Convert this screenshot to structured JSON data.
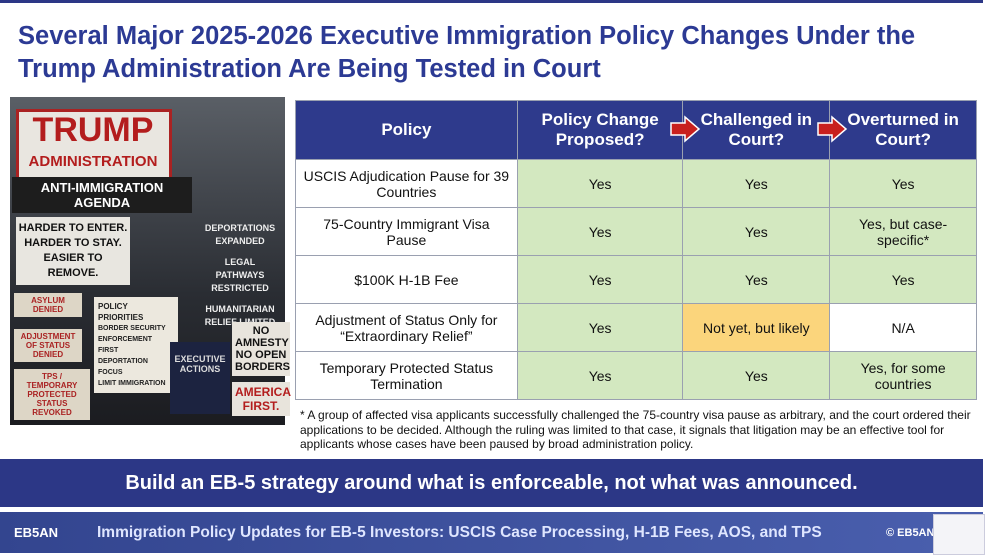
{
  "header": {
    "title": "Several Major 2025-2026 Executive Immigration Policy Changes Under the Trump Administration Are Being Tested in Court"
  },
  "image": {
    "sign_title": "TRUMP",
    "sign_subtitle": "ADMINISTRATION",
    "banner": "ANTI-IMMIGRATION AGENDA",
    "slogan": [
      "HARDER TO ENTER.",
      "HARDER TO STAY.",
      "EASIER TO REMOVE."
    ],
    "right_sign": [
      "DEPORTATIONS EXPANDED",
      "LEGAL PATHWAYS RESTRICTED",
      "HUMANITARIAN RELIEF LIMITED"
    ],
    "stamps": [
      "ASYLUM DENIED",
      "ADJUSTMENT OF STATUS DENIED",
      "TPS / TEMPORARY PROTECTED STATUS REVOKED"
    ],
    "clipboard": {
      "title": "POLICY PRIORITIES",
      "items": [
        "BORDER SECURITY",
        "ENFORCEMENT FIRST",
        "DEPORTATION FOCUS",
        "LIMIT IMMIGRATION"
      ]
    },
    "folder": "EXECUTIVE ACTIONS",
    "placard": "NO AMNESTY NO OPEN BORDERS",
    "placard_footer": "AMERICA FIRST."
  },
  "table": {
    "columns": [
      "Policy",
      "Policy Change Proposed?",
      "Challenged in Court?",
      "Overturned in Court?"
    ],
    "rows": [
      [
        "USCIS Adjudication Pause for 39 Countries",
        "Yes",
        "Yes",
        "Yes"
      ],
      [
        "75-Country Immigrant Visa Pause",
        "Yes",
        "Yes",
        "Yes, but case-specific*"
      ],
      [
        "$100K H-1B Fee",
        "Yes",
        "Yes",
        "Yes"
      ],
      [
        "Adjustment of Status Only for “Extraordinary Relief”",
        "Yes",
        "Not yet, but likely",
        "N/A"
      ],
      [
        "Temporary Protected Status Termination",
        "Yes",
        "Yes",
        "Yes, for some countries"
      ]
    ]
  },
  "footnote": "* A group of affected visa applicants successfully challenged the 75-country visa pause as arbitrary, and the court ordered their applications to be decided. Although the ruling was limited to that case, it signals that litigation may be an effective tool for applicants whose cases have been paused by broad administration policy.",
  "banner": "Build an EB-5 strategy around what is enforceable, not what was announced.",
  "footer": {
    "logo": "EB5AN",
    "text": "Immigration Policy Updates for EB-5 Investors: USCIS Case Processing, H-1B Fees, AOS, and TPS",
    "copyright": "© EB5AN"
  }
}
